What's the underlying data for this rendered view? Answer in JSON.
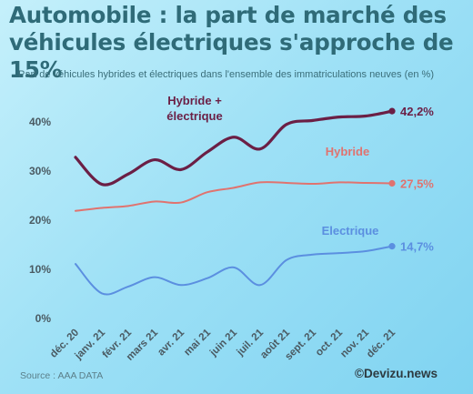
{
  "title": "Automobile : la part de marché des véhicules électriques s'approche de 15%",
  "subtitle": "Part de véhicules hybrides et électriques dans l'ensemble des immatriculations neuves (en %)",
  "source": "Source : AAA DATA",
  "credit": "©Devizu.news",
  "chart_data": {
    "type": "line",
    "title": "Automobile : la part de marché des véhicules électriques s'approche de 15%",
    "subtitle": "Part de véhicules hybrides et électriques dans l'ensemble des immatriculations neuves (en %)",
    "xlabel": "",
    "ylabel": "",
    "categories": [
      "déc. 20",
      "janv. 21",
      "févr. 21",
      "mars 21",
      "avr. 21",
      "mai 21",
      "juin 21",
      "juil. 21",
      "août 21",
      "sept. 21",
      "oct. 21",
      "nov. 21",
      "déc. 21"
    ],
    "yticks": [
      "0%",
      "10%",
      "20%",
      "30%",
      "40%"
    ],
    "ylim": [
      0,
      45
    ],
    "grid": false,
    "series": [
      {
        "name": "Hybride + électrique",
        "color": "#6b1f45",
        "end_label": "42,2%",
        "values": [
          32.8,
          27.3,
          29.4,
          32.3,
          30.3,
          33.9,
          36.9,
          34.5,
          39.5,
          40.3,
          41.0,
          41.2,
          42.2
        ]
      },
      {
        "name": "Hybride",
        "color": "#e0736f",
        "end_label": "27,5%",
        "values": [
          21.9,
          22.5,
          22.9,
          23.8,
          23.6,
          25.7,
          26.6,
          27.7,
          27.6,
          27.4,
          27.7,
          27.6,
          27.5
        ]
      },
      {
        "name": "Electrique",
        "color": "#5b8fe0",
        "end_label": "14,7%",
        "values": [
          11.1,
          5.1,
          6.5,
          8.4,
          6.8,
          8.2,
          10.4,
          6.8,
          11.9,
          13.0,
          13.3,
          13.7,
          14.7
        ]
      }
    ]
  }
}
